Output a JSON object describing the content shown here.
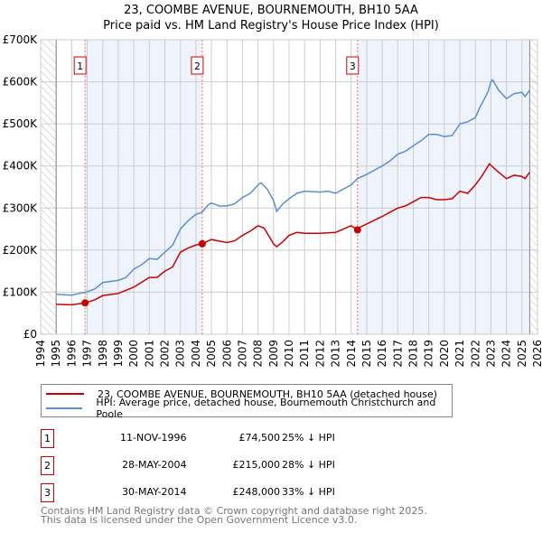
{
  "chart_data": {
    "type": "line",
    "title": "23, COOMBE AVENUE, BOURNEMOUTH, BH10 5AA",
    "subtitle": "Price paid vs. HM Land Registry's House Price Index (HPI)",
    "xlim": [
      1994,
      2026
    ],
    "ylim": [
      0,
      700000
    ],
    "x_ticks": [
      "1994",
      "1995",
      "1996",
      "1997",
      "1998",
      "1999",
      "2000",
      "2001",
      "2002",
      "2003",
      "2004",
      "2005",
      "2006",
      "2007",
      "2008",
      "2009",
      "2010",
      "2011",
      "2012",
      "2013",
      "2014",
      "2015",
      "2016",
      "2017",
      "2018",
      "2019",
      "2020",
      "2021",
      "2022",
      "2023",
      "2024",
      "2025",
      "2026"
    ],
    "y_ticks": [
      {
        "v": 0,
        "label": "£0"
      },
      {
        "v": 100000,
        "label": "£100K"
      },
      {
        "v": 200000,
        "label": "£200K"
      },
      {
        "v": 300000,
        "label": "£300K"
      },
      {
        "v": 400000,
        "label": "£400K"
      },
      {
        "v": 500000,
        "label": "£500K"
      },
      {
        "v": 600000,
        "label": "£600K"
      },
      {
        "v": 700000,
        "label": "£700K"
      }
    ],
    "grid": true,
    "colors": {
      "property": "#cc0000",
      "hpi": "#5b8fd4",
      "band": "#eef3fc"
    },
    "series": [
      {
        "name": "23, COOMBE AVENUE, BOURNEMOUTH, BH10 5AA (detached house)",
        "color": "#cc0000",
        "x": [
          1995,
          1996,
          1996.86,
          1997.5,
          1998,
          1999,
          2000,
          2001,
          2001.5,
          2002,
          2002.5,
          2003,
          2003.5,
          2004,
          2004.41,
          2004.8,
          2005,
          2006,
          2006.5,
          2007,
          2007.5,
          2008,
          2008.4,
          2009,
          2009.2,
          2009.6,
          2010,
          2010.5,
          2011,
          2012,
          2013,
          2013.5,
          2014,
          2014.41,
          2014.6,
          2015,
          2016,
          2016.5,
          2017,
          2017.5,
          2018,
          2018.5,
          2019,
          2019.5,
          2020,
          2020.5,
          2021,
          2021.5,
          2022,
          2022.4,
          2022.9,
          2023.2,
          2023.5,
          2024,
          2024.5,
          2025,
          2025.2,
          2025.5
        ],
        "y": [
          71,
          70,
          74.5,
          82,
          92,
          97,
          112,
          135,
          135,
          150,
          160,
          195,
          205,
          212,
          215,
          222,
          225,
          218,
          222,
          235,
          245,
          258,
          252,
          215,
          208,
          220,
          235,
          242,
          240,
          240,
          242,
          250,
          258,
          248,
          255,
          262,
          280,
          290,
          300,
          305,
          315,
          325,
          325,
          320,
          320,
          322,
          340,
          335,
          355,
          375,
          405,
          395,
          385,
          370,
          378,
          375,
          370,
          385
        ]
      },
      {
        "name": "HPI: Average price, detached house, Bournemouth Christchurch and Poole",
        "color": "#5b8fd4",
        "x": [
          1995,
          1996,
          1997,
          1997.5,
          1998,
          1999,
          1999.5,
          2000,
          2000.5,
          2001,
          2001.5,
          2002,
          2002.5,
          2003,
          2003.5,
          2004,
          2004.4,
          2004.8,
          2005,
          2005.5,
          2006,
          2006.5,
          2007,
          2007.5,
          2008,
          2008.2,
          2008.6,
          2009,
          2009.2,
          2009.6,
          2010,
          2010.5,
          2011,
          2012,
          2012.5,
          2013,
          2013.5,
          2014,
          2014.4,
          2015,
          2015.5,
          2016,
          2016.5,
          2017,
          2017.5,
          2018,
          2018.5,
          2019,
          2019.5,
          2020,
          2020.5,
          2021,
          2021.5,
          2022,
          2022.3,
          2022.8,
          2023,
          2023.1,
          2023.5,
          2024,
          2024.5,
          2025,
          2025.2,
          2025.5
        ],
        "y": [
          95,
          93,
          101,
          108,
          123,
          128,
          135,
          155,
          165,
          180,
          178,
          195,
          212,
          250,
          270,
          285,
          290,
          308,
          312,
          305,
          305,
          310,
          325,
          335,
          355,
          360,
          345,
          318,
          292,
          310,
          322,
          335,
          340,
          338,
          340,
          335,
          345,
          355,
          370,
          380,
          390,
          400,
          412,
          428,
          435,
          448,
          460,
          475,
          475,
          470,
          472,
          500,
          505,
          515,
          540,
          575,
          600,
          605,
          580,
          560,
          572,
          575,
          565,
          580
        ]
      }
    ],
    "y_units": "thousands GBP",
    "bands": [
      [
        1996.86,
        2004.41
      ],
      [
        2014.41,
        2025.5
      ]
    ],
    "hatch_after": 2025.5,
    "sales": [
      {
        "label": "1",
        "x": 1996.86,
        "y": 74.5,
        "date": "11-NOV-1996",
        "price": "£74,500",
        "delta": "25% ↓ HPI"
      },
      {
        "label": "2",
        "x": 2004.41,
        "y": 215,
        "date": "28-MAY-2004",
        "price": "£215,000",
        "delta": "28% ↓ HPI"
      },
      {
        "label": "3",
        "x": 2014.41,
        "y": 248,
        "date": "30-MAY-2014",
        "price": "£248,000",
        "delta": "33% ↓ HPI"
      }
    ],
    "legend_position": "bottom"
  },
  "footer": [
    "Contains HM Land Registry data © Crown copyright and database right 2025.",
    "This data is licensed under the Open Government Licence v3.0."
  ]
}
